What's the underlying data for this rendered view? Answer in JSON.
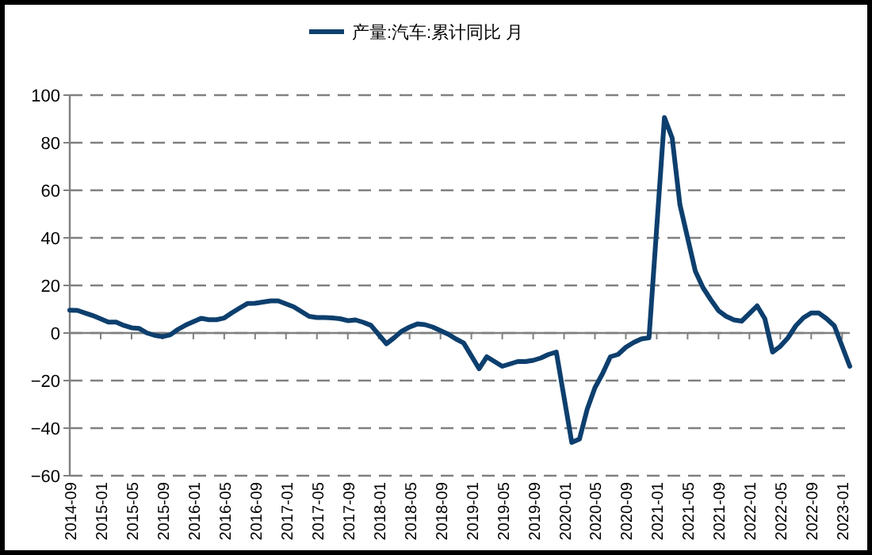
{
  "chart_data": {
    "type": "line",
    "x": [
      "2014-09",
      "2014-10",
      "2014-11",
      "2014-12",
      "2015-02",
      "2015-03",
      "2015-04",
      "2015-05",
      "2015-06",
      "2015-07",
      "2015-08",
      "2015-09",
      "2015-10",
      "2015-11",
      "2015-12",
      "2016-02",
      "2016-03",
      "2016-04",
      "2016-05",
      "2016-06",
      "2016-07",
      "2016-08",
      "2016-09",
      "2016-10",
      "2016-11",
      "2016-12",
      "2017-02",
      "2017-03",
      "2017-04",
      "2017-05",
      "2017-06",
      "2017-07",
      "2017-08",
      "2017-09",
      "2017-10",
      "2017-11",
      "2017-12",
      "2018-02",
      "2018-03",
      "2018-04",
      "2018-05",
      "2018-06",
      "2018-07",
      "2018-08",
      "2018-09",
      "2018-10",
      "2018-11",
      "2018-12",
      "2019-02",
      "2019-03",
      "2019-04",
      "2019-05",
      "2019-06",
      "2019-07",
      "2019-08",
      "2019-09",
      "2019-10",
      "2019-11",
      "2019-12",
      "2020-02",
      "2020-03",
      "2020-04",
      "2020-05",
      "2020-06",
      "2020-07",
      "2020-08",
      "2020-09",
      "2020-10",
      "2020-11",
      "2020-12",
      "2021-02",
      "2021-03",
      "2021-04",
      "2021-05",
      "2021-06",
      "2021-07",
      "2021-08",
      "2021-09",
      "2021-10",
      "2021-11",
      "2021-12",
      "2022-02",
      "2022-03",
      "2022-04",
      "2022-05",
      "2022-06",
      "2022-07",
      "2022-08",
      "2022-09",
      "2022-10",
      "2022-11",
      "2022-12",
      "2023-02"
    ],
    "series": [
      {
        "name": "产量:汽车:累计同比 月",
        "color": "#0d3f6e",
        "values": [
          9.6,
          9.5,
          8.4,
          7.3,
          4.6,
          4.6,
          3.2,
          2.2,
          1.9,
          0,
          -1,
          -1.5,
          -0.8,
          1.5,
          3.3,
          6.2,
          5.6,
          5.6,
          6.3,
          8.5,
          10.5,
          12.4,
          12.5,
          13,
          13.5,
          13.5,
          11,
          9,
          7,
          6.5,
          6.5,
          6.3,
          6,
          5.2,
          5.5,
          4.5,
          3.2,
          -4.5,
          -2,
          0.8,
          2.5,
          3.8,
          3.5,
          2.5,
          1,
          -0.5,
          -2.5,
          -4.2,
          -15,
          -10,
          -12,
          -14,
          -13,
          -12,
          -12,
          -11.5,
          -10.5,
          -9,
          -8,
          -46,
          -44.6,
          -32,
          -23,
          -17,
          -10,
          -9,
          -6,
          -4,
          -2.5,
          -2,
          90.6,
          82,
          54,
          40,
          26,
          19,
          14,
          9.4,
          7,
          5.5,
          5,
          11.4,
          6,
          -8,
          -5.6,
          -2,
          3,
          6.4,
          8.4,
          8.4,
          6,
          3,
          -14
        ]
      }
    ],
    "xlim": [
      "2014-09",
      "2023-02"
    ],
    "xticks": [
      "2014-09",
      "2015-01",
      "2015-05",
      "2015-09",
      "2016-01",
      "2016-05",
      "2016-09",
      "2017-01",
      "2017-05",
      "2017-09",
      "2018-01",
      "2018-05",
      "2018-09",
      "2019-01",
      "2019-05",
      "2019-09",
      "2020-01",
      "2020-05",
      "2020-09",
      "2021-01",
      "2021-05",
      "2021-09",
      "2022-01",
      "2022-05",
      "2022-09",
      "2023-01"
    ],
    "ylim": [
      -60,
      100
    ],
    "yticks": [
      -60,
      -40,
      -20,
      0,
      20,
      40,
      60,
      80,
      100
    ],
    "grid": "y",
    "legend": "top",
    "marker": "none",
    "line_style": "solid"
  }
}
